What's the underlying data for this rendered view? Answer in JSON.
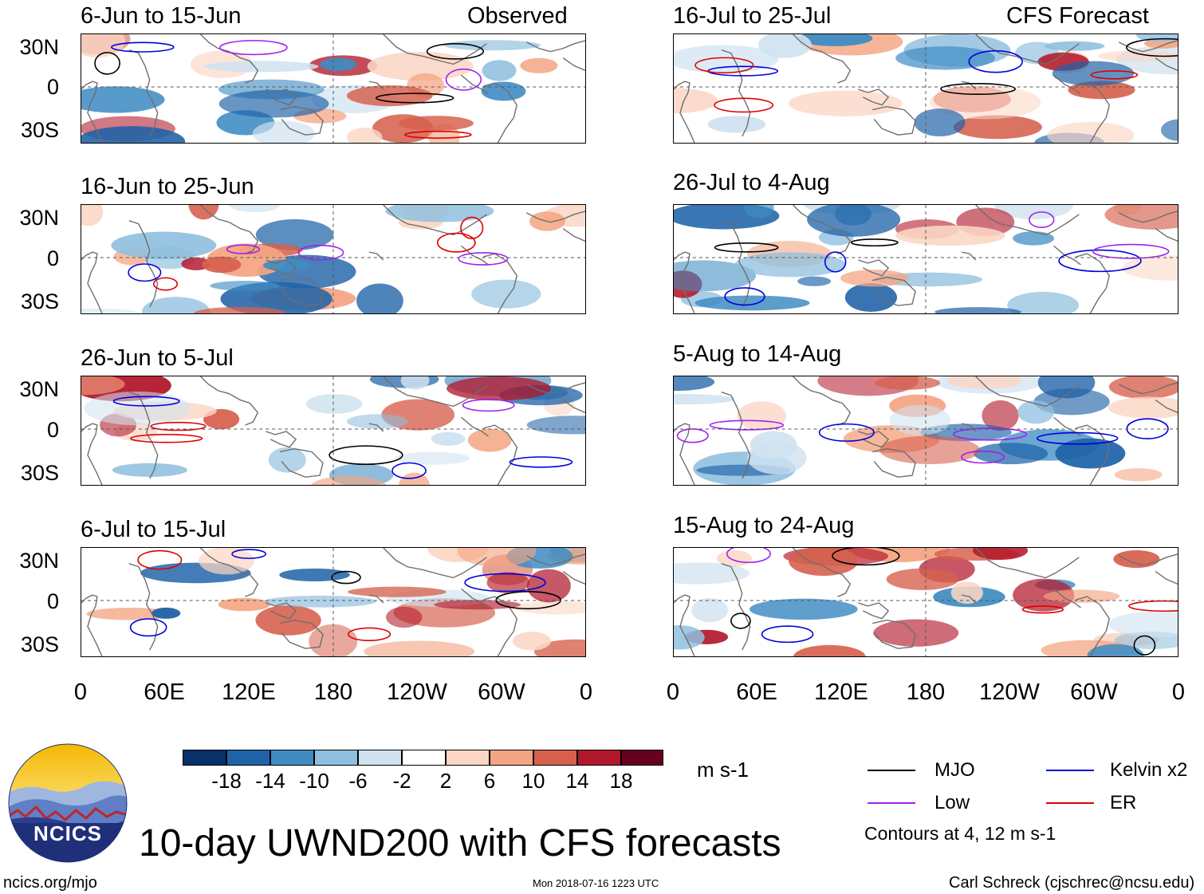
{
  "title": "10-day UWND200 with CFS forecasts",
  "observed_label": "Observed",
  "forecast_label": "CFS Forecast",
  "panels_left": [
    {
      "period": "6-Jun to 15-Jun"
    },
    {
      "period": "16-Jun to 25-Jun"
    },
    {
      "period": "26-Jun to 5-Jul"
    },
    {
      "period": "6-Jul to 15-Jul"
    }
  ],
  "panels_right": [
    {
      "period": "16-Jul to 25-Jul"
    },
    {
      "period": "26-Jul to 4-Aug"
    },
    {
      "period": "5-Aug to 14-Aug"
    },
    {
      "period": "15-Aug to 24-Aug"
    }
  ],
  "lat_labels": [
    "30N",
    "0",
    "30S"
  ],
  "lon_labels": [
    "0",
    "60E",
    "120E",
    "180",
    "120W",
    "60W",
    "0"
  ],
  "colorbar": {
    "unit": "m s-1",
    "colors": [
      "#08306b",
      "#1f63a8",
      "#3f8cc3",
      "#8fbfdf",
      "#cfe2f0",
      "#ffffff",
      "#fbd6c4",
      "#f4a582",
      "#d6604d",
      "#b2182b",
      "#67001f"
    ],
    "tick_labels": [
      "-18",
      "-14",
      "-10",
      "-6",
      "-2",
      "2",
      "6",
      "10",
      "14",
      "18"
    ]
  },
  "legend": {
    "items": [
      {
        "label": "MJO",
        "color": "#000000"
      },
      {
        "label": "Kelvin x2",
        "color": "#0000dd"
      },
      {
        "label": "Low",
        "color": "#a020f0"
      },
      {
        "label": "ER",
        "color": "#dd0000"
      }
    ],
    "note": "Contours at 4, 12 m s-1"
  },
  "logo": {
    "text": "NCICS"
  },
  "footer": {
    "url": "ncics.org/mjo",
    "timestamp": "Mon 2018-07-16 1223 UTC",
    "credit": "Carl Schreck (cjschrec@ncsu.edu)"
  }
}
